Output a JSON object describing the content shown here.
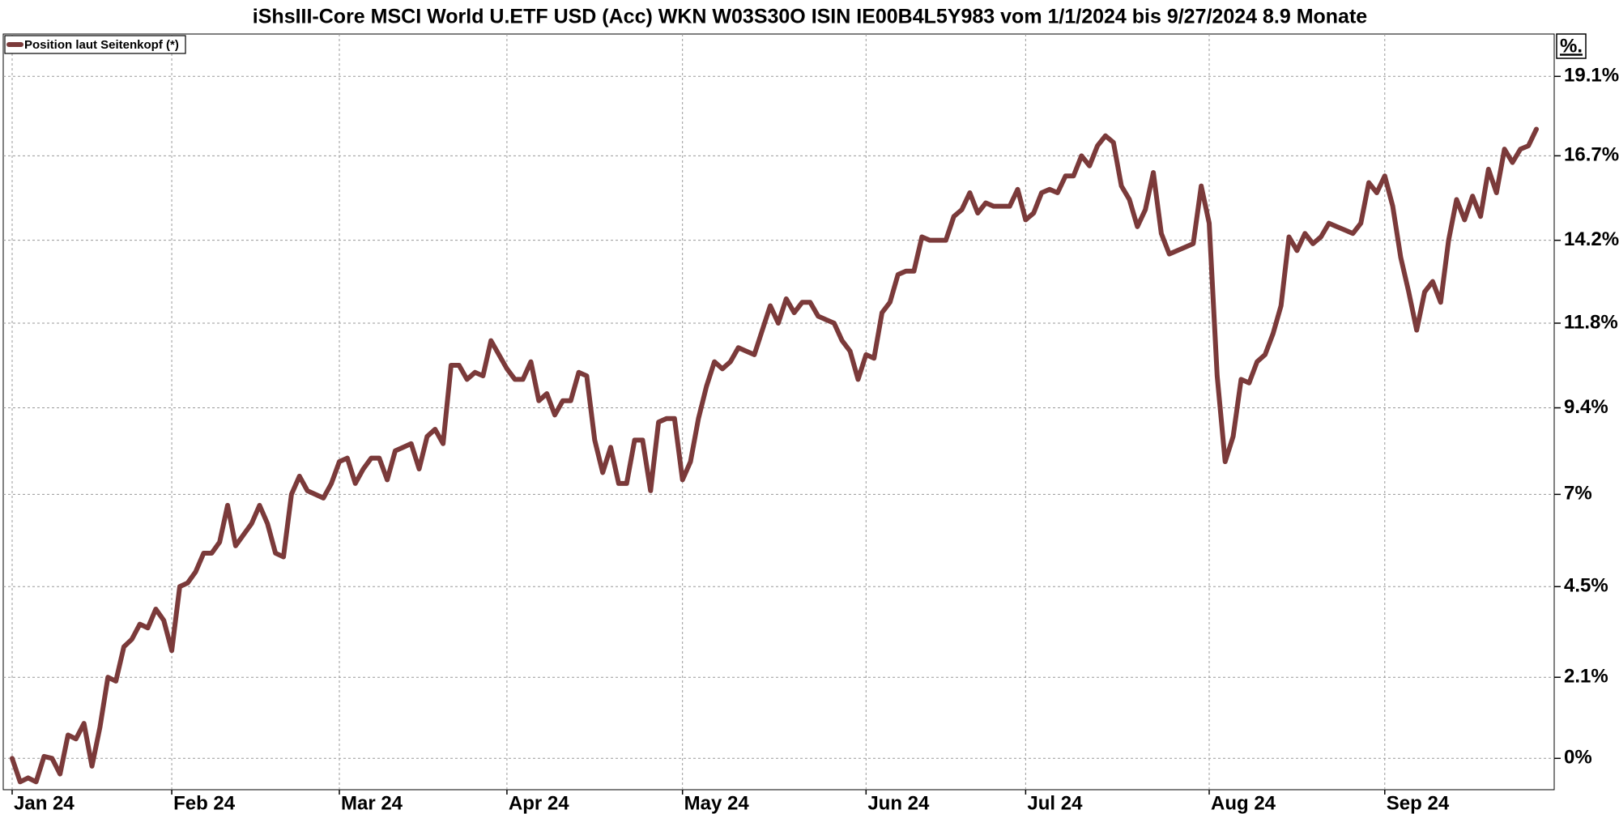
{
  "chart_data": {
    "type": "line",
    "title": "iShsIII-Core MSCI World U.ETF USD (Acc) WKN W03S30O ISIN IE00B4L5Y983 vom 1/1/2024 bis 9/27/2024 8.9 Monate",
    "y_axis_label": "%.",
    "categories": [
      "Jan 24",
      null,
      null,
      null,
      null,
      null,
      null,
      null,
      null,
      null,
      null,
      null,
      null,
      null,
      null,
      null,
      null,
      null,
      null,
      null,
      "Feb 24",
      null,
      null,
      null,
      null,
      null,
      null,
      null,
      null,
      null,
      null,
      null,
      null,
      null,
      null,
      null,
      null,
      null,
      null,
      null,
      null,
      "Mar 24",
      null,
      null,
      null,
      null,
      null,
      null,
      null,
      null,
      null,
      null,
      null,
      null,
      null,
      null,
      null,
      null,
      null,
      null,
      null,
      null,
      "Apr 24",
      null,
      null,
      null,
      null,
      null,
      null,
      null,
      null,
      null,
      null,
      null,
      null,
      null,
      null,
      null,
      null,
      null,
      null,
      null,
      null,
      null,
      "May 24",
      null,
      null,
      null,
      null,
      null,
      null,
      null,
      null,
      null,
      null,
      null,
      null,
      null,
      null,
      null,
      null,
      null,
      null,
      null,
      null,
      null,
      null,
      "Jun 24",
      null,
      null,
      null,
      null,
      null,
      null,
      null,
      null,
      null,
      null,
      null,
      null,
      null,
      null,
      null,
      null,
      null,
      null,
      null,
      "Jul 24",
      null,
      null,
      null,
      null,
      null,
      null,
      null,
      null,
      null,
      null,
      null,
      null,
      null,
      null,
      null,
      null,
      null,
      null,
      null,
      null,
      null,
      null,
      "Aug 24",
      null,
      null,
      null,
      null,
      null,
      null,
      null,
      null,
      null,
      null,
      null,
      null,
      null,
      null,
      null,
      null,
      null,
      null,
      null,
      null,
      null,
      "Sep 24",
      null,
      null,
      null,
      null,
      null,
      null,
      null,
      null,
      null,
      null,
      null,
      null,
      null,
      null,
      null,
      null,
      null,
      null,
      null
    ],
    "series": [
      {
        "name": "Position laut Seitenkopf (*)",
        "color": "#7b3a3a",
        "values": [
          0,
          -0.6,
          -0.5,
          -0.6,
          0.05,
          0,
          -0.4,
          0.6,
          0.5,
          0.9,
          -0.2,
          0.8,
          2.1,
          2.0,
          2.9,
          3.1,
          3.5,
          3.4,
          3.9,
          3.6,
          2.8,
          4.5,
          4.6,
          4.9,
          5.4,
          5.4,
          5.7,
          6.7,
          5.6,
          5.9,
          6.2,
          6.7,
          6.2,
          5.4,
          5.3,
          7.0,
          7.5,
          7.1,
          7.0,
          6.9,
          7.3,
          7.9,
          8.0,
          7.3,
          7.7,
          8.0,
          8.0,
          7.4,
          8.2,
          8.3,
          8.4,
          7.7,
          8.6,
          8.8,
          8.4,
          10.6,
          10.6,
          10.2,
          10.4,
          10.3,
          11.3,
          10.9,
          10.5,
          10.2,
          10.2,
          10.7,
          9.6,
          9.8,
          9.2,
          9.6,
          9.6,
          10.4,
          10.3,
          8.5,
          7.6,
          8.3,
          7.3,
          7.3,
          8.5,
          8.5,
          7.1,
          9.0,
          9.1,
          9.1,
          7.4,
          7.9,
          9.1,
          10.0,
          10.7,
          10.5,
          10.7,
          11.1,
          11.0,
          10.9,
          11.6,
          12.3,
          11.8,
          12.5,
          12.1,
          12.4,
          12.4,
          12.0,
          11.9,
          11.8,
          11.3,
          11.0,
          10.2,
          10.9,
          10.8,
          12.1,
          12.4,
          13.2,
          13.3,
          13.3,
          14.3,
          14.2,
          14.2,
          14.2,
          14.9,
          15.1,
          15.6,
          15.0,
          15.3,
          15.2,
          15.2,
          15.2,
          15.7,
          14.8,
          15.0,
          15.6,
          15.7,
          15.6,
          16.1,
          16.1,
          16.7,
          16.4,
          17.0,
          17.3,
          17.1,
          15.8,
          15.4,
          14.6,
          15.1,
          16.2,
          14.4,
          13.8,
          13.9,
          14.0,
          14.1,
          15.8,
          14.7,
          10.3,
          7.9,
          8.6,
          10.2,
          10.1,
          10.7,
          10.9,
          11.5,
          12.3,
          14.3,
          13.9,
          14.4,
          14.1,
          14.3,
          14.7,
          14.6,
          14.5,
          14.4,
          14.7,
          15.9,
          15.6,
          16.1,
          15.2,
          13.7,
          12.7,
          11.6,
          12.7,
          13.0,
          12.4,
          14.2,
          15.4,
          14.8,
          15.5,
          14.9,
          16.3,
          15.6,
          16.9,
          16.5,
          16.9,
          17.0,
          17.5
        ]
      }
    ],
    "ylim": [
      -0.8,
      20.4
    ],
    "yscale": "log",
    "yticks": [
      {
        "value": 0,
        "label": "0%"
      },
      {
        "value": 2.1,
        "label": "2.1%"
      },
      {
        "value": 4.5,
        "label": "4.5%"
      },
      {
        "value": 7,
        "label": "7%"
      },
      {
        "value": 9.4,
        "label": "9.4%"
      },
      {
        "value": 11.8,
        "label": "11.8%"
      },
      {
        "value": 14.2,
        "label": "14.2%"
      },
      {
        "value": 16.7,
        "label": "16.7%"
      },
      {
        "value": 19.1,
        "label": "19.1%"
      }
    ],
    "grid": true,
    "legend": "upper left"
  }
}
